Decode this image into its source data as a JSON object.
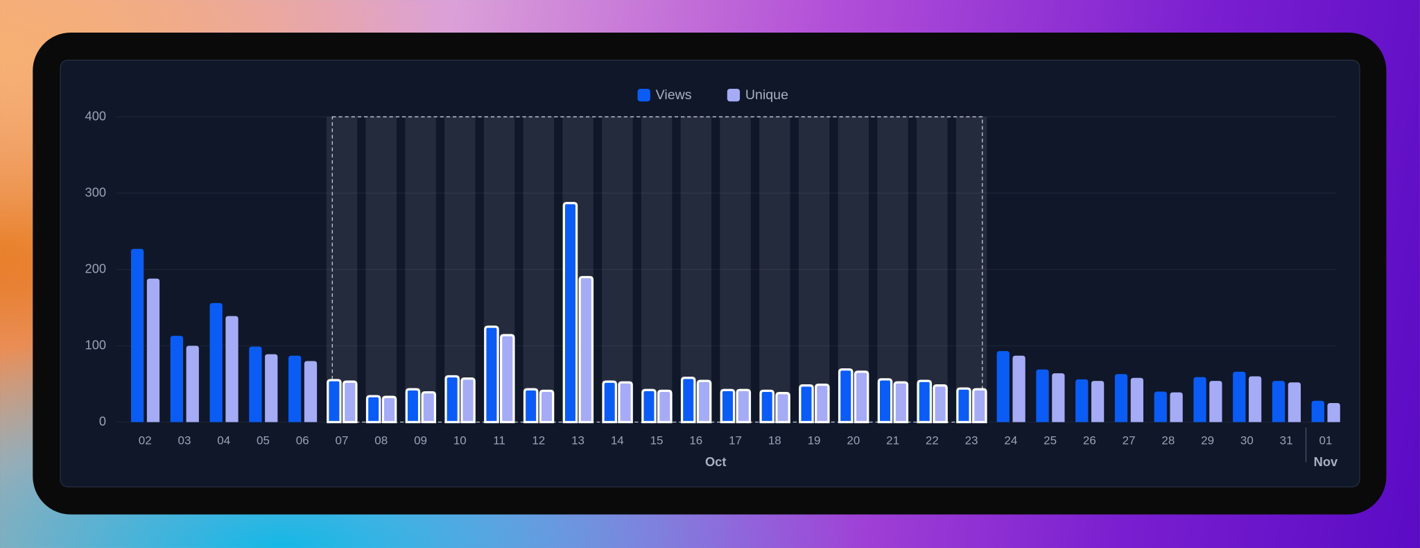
{
  "chart_data": {
    "type": "bar",
    "categories": [
      "02",
      "03",
      "04",
      "05",
      "06",
      "07",
      "08",
      "09",
      "10",
      "11",
      "12",
      "13",
      "14",
      "15",
      "16",
      "17",
      "18",
      "19",
      "20",
      "21",
      "22",
      "23",
      "24",
      "25",
      "26",
      "27",
      "28",
      "29",
      "30",
      "31",
      "01"
    ],
    "x_groups": [
      "Oct",
      "Nov"
    ],
    "series": [
      {
        "name": "Views",
        "color": "#0a5cf5",
        "values": [
          227,
          113,
          156,
          99,
          87,
          55,
          34,
          43,
          60,
          125,
          43,
          287,
          53,
          42,
          58,
          42,
          41,
          48,
          69,
          56,
          54,
          44,
          93,
          69,
          56,
          63,
          40,
          59,
          66,
          54,
          28
        ]
      },
      {
        "name": "Unique",
        "color": "#a5abf5",
        "values": [
          188,
          100,
          139,
          89,
          80,
          53,
          33,
          39,
          57,
          114,
          41,
          190,
          52,
          41,
          54,
          42,
          38,
          49,
          66,
          52,
          48,
          43,
          87,
          64,
          54,
          58,
          39,
          54,
          60,
          52,
          25
        ]
      }
    ],
    "ylim": [
      0,
      400
    ],
    "yticks": [
      0,
      100,
      200,
      300,
      400
    ],
    "grid": true,
    "legend": "top"
  }
}
